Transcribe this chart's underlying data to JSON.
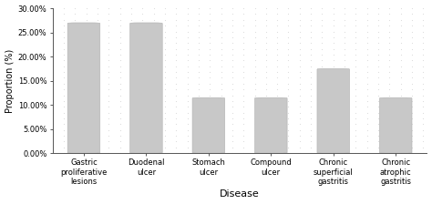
{
  "categories": [
    "Gastric\nproliferative\nlesions",
    "Duodenal\nulcer",
    "Stomach\nulcer",
    "Compound\nulcer",
    "Chronic\nsuperficial\ngastritis",
    "Chronic\natrophic\ngastritis"
  ],
  "values": [
    27.0,
    27.0,
    11.5,
    11.5,
    17.5,
    11.5
  ],
  "bar_color": "#c8c8c8",
  "bar_edge_color": "#b0b0b0",
  "title": "",
  "xlabel": "Disease",
  "ylabel": "Proportion (%)",
  "ylim": [
    0,
    30
  ],
  "yticks": [
    0,
    5,
    10,
    15,
    20,
    25,
    30
  ],
  "ytick_labels": [
    "0.00%",
    "5.00%",
    "10.00%",
    "15.00%",
    "20.00%",
    "25.00%",
    "30.00%"
  ],
  "background_color": "#ffffff",
  "dot_color": "#d8d8d8",
  "label_fontsize": 7,
  "tick_fontsize": 6,
  "xlabel_fontsize": 8
}
